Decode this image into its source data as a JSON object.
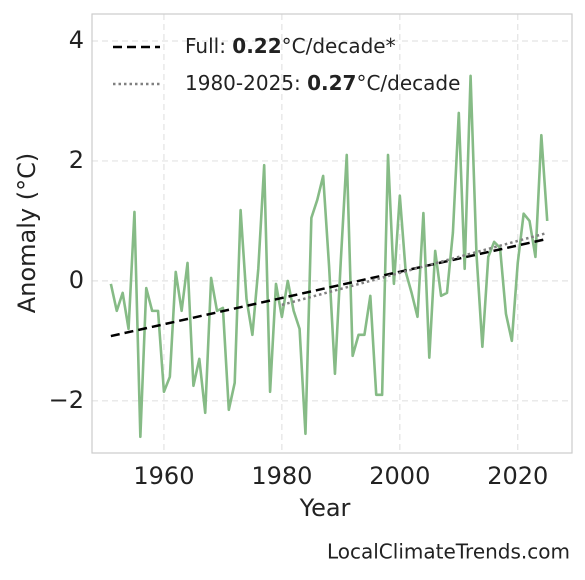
{
  "chart_data": {
    "type": "line",
    "xlabel": "Year",
    "ylabel": "Anomaly (°C)",
    "footer": "LocalClimateTrends.com",
    "xlim": [
      1947.8,
      2029.2
    ],
    "ylim": [
      -2.87,
      4.45
    ],
    "xticks": [
      1960,
      1980,
      2000,
      2020
    ],
    "yticks": [
      {
        "value": -2,
        "label": "−2"
      },
      0,
      2,
      4
    ],
    "grid": true,
    "legend": "upper left",
    "series": [
      {
        "color": "#86bb86",
        "x": [
          1951,
          1952,
          1953,
          1954,
          1955,
          1956,
          1957,
          1958,
          1959,
          1960,
          1961,
          1962,
          1963,
          1964,
          1965,
          1966,
          1967,
          1968,
          1969,
          1970,
          1971,
          1972,
          1973,
          1974,
          1975,
          1976,
          1977,
          1978,
          1979,
          1980,
          1981,
          1982,
          1983,
          1984,
          1985,
          1986,
          1987,
          1988,
          1989,
          1990,
          1991,
          1992,
          1993,
          1994,
          1995,
          1996,
          1997,
          1998,
          1999,
          2000,
          2001,
          2002,
          2003,
          2004,
          2005,
          2006,
          2007,
          2008,
          2009,
          2010,
          2011,
          2012,
          2013,
          2014,
          2015,
          2016,
          2017,
          2018,
          2019,
          2020,
          2021,
          2022,
          2023,
          2024,
          2025
        ],
        "values": [
          -0.05,
          -0.5,
          -0.2,
          -0.8,
          1.15,
          -2.6,
          -0.12,
          -0.5,
          -0.5,
          -1.85,
          -1.6,
          0.15,
          -0.5,
          0.3,
          -1.75,
          -1.3,
          -2.2,
          0.05,
          -0.5,
          -0.45,
          -2.15,
          -1.7,
          1.18,
          -0.3,
          -0.9,
          0.2,
          1.93,
          -1.85,
          -0.05,
          -0.6,
          0.0,
          -0.5,
          -0.8,
          -2.55,
          1.05,
          1.35,
          1.75,
          0.25,
          -1.55,
          0.35,
          2.1,
          -1.25,
          -0.9,
          -0.9,
          -0.25,
          -1.9,
          -1.9,
          2.1,
          -0.05,
          1.42,
          0.15,
          -0.2,
          -0.6,
          1.13,
          -1.28,
          0.5,
          -0.25,
          -0.2,
          0.8,
          2.8,
          0.2,
          3.42,
          0.45,
          -1.1,
          0.4,
          0.65,
          0.55,
          -0.55,
          -1.0,
          0.3,
          1.12,
          1.0,
          0.4,
          2.43,
          1.0
        ]
      },
      {
        "name": [
          "Full: ",
          "0.22",
          "°C/decade*"
        ],
        "color": "#000000",
        "dash": "dashed",
        "x": [
          1951,
          2025
        ],
        "values": [
          -0.92,
          0.7
        ]
      },
      {
        "name": [
          "1980-2025: ",
          "0.27",
          "°C/decade"
        ],
        "color": "#808080",
        "dash": "dotted",
        "x": [
          1980,
          2025
        ],
        "values": [
          -0.4,
          0.8
        ]
      }
    ]
  }
}
